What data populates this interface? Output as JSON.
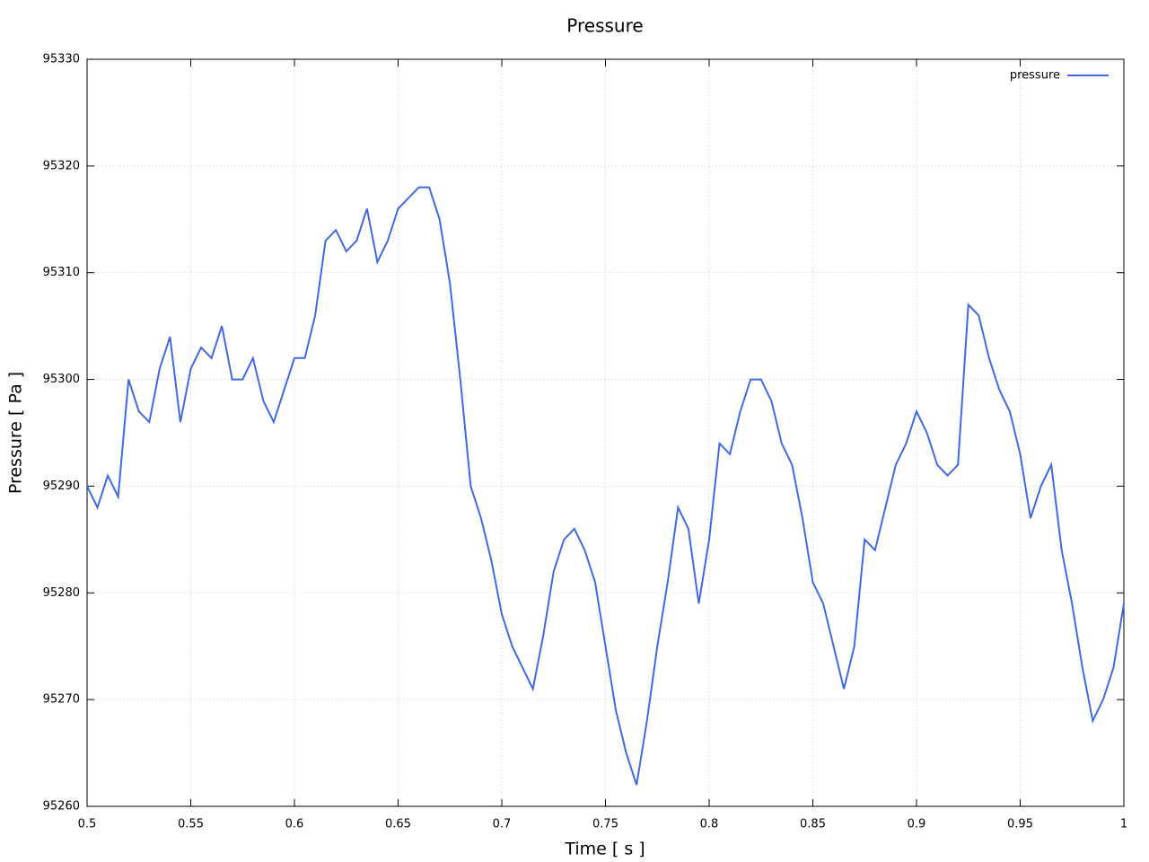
{
  "chart_data": {
    "type": "line",
    "title": "Pressure",
    "x_label": "Time [ s ]",
    "y_label": "Pressure [ Pa ]",
    "x": [
      0.5,
      0.505,
      0.51,
      0.515,
      0.52,
      0.525,
      0.53,
      0.535,
      0.54,
      0.545,
      0.55,
      0.555,
      0.56,
      0.565,
      0.57,
      0.575,
      0.58,
      0.585,
      0.59,
      0.595,
      0.6,
      0.605,
      0.61,
      0.615,
      0.62,
      0.625,
      0.63,
      0.635,
      0.64,
      0.645,
      0.65,
      0.655,
      0.66,
      0.665,
      0.67,
      0.675,
      0.68,
      0.685,
      0.69,
      0.695,
      0.7,
      0.705,
      0.71,
      0.715,
      0.72,
      0.725,
      0.73,
      0.735,
      0.74,
      0.745,
      0.75,
      0.755,
      0.76,
      0.765,
      0.77,
      0.775,
      0.78,
      0.785,
      0.79,
      0.795,
      0.8,
      0.805,
      0.81,
      0.815,
      0.82,
      0.825,
      0.83,
      0.835,
      0.84,
      0.845,
      0.85,
      0.855,
      0.86,
      0.865,
      0.87,
      0.875,
      0.88,
      0.885,
      0.89,
      0.895,
      0.9,
      0.905,
      0.91,
      0.915,
      0.92,
      0.925,
      0.93,
      0.935,
      0.94,
      0.945,
      0.95,
      0.955,
      0.96,
      0.965,
      0.97,
      0.975,
      0.98,
      0.985,
      0.99,
      0.995,
      1
    ],
    "series": [
      {
        "name": "pressure",
        "color": "#4169e1",
        "values": [
          95290,
          95288,
          95291,
          95289,
          95300,
          95297,
          95296,
          95301,
          95304,
          95296,
          95301,
          95303,
          95302,
          95305,
          95300,
          95300,
          95302,
          95298,
          95296,
          95299,
          95302,
          95302,
          95306,
          95313,
          95314,
          95312,
          95313,
          95316,
          95311,
          95313,
          95316,
          95317,
          95318,
          95318,
          95315,
          95309,
          95300,
          95290,
          95287,
          95283,
          95278,
          95275,
          95273,
          95271,
          95276,
          95282,
          95285,
          95286,
          95284,
          95281,
          95275,
          95269,
          95265,
          95262,
          95268,
          95275,
          95281,
          95288,
          95286,
          95279,
          95285,
          95294,
          95293,
          95297,
          95300,
          95300,
          95298,
          95294,
          95292,
          95287,
          95281,
          95279,
          95275,
          95271,
          95275,
          95285,
          95284,
          95288,
          95292,
          95294,
          95297,
          95295,
          95292,
          95291,
          95292,
          95307,
          95306,
          95302,
          95299,
          95297,
          95293,
          95287,
          95290,
          95292,
          95284,
          95279,
          95273,
          95268,
          95270,
          95273,
          95279
        ]
      }
    ],
    "xlim": [
      0.5,
      1
    ],
    "xticks": [
      0.5,
      0.55,
      0.6,
      0.65,
      0.7,
      0.75,
      0.8,
      0.85,
      0.9,
      0.95,
      1
    ],
    "ylim": [
      95260,
      95330
    ],
    "yticks": [
      95260,
      95270,
      95280,
      95290,
      95300,
      95310,
      95320,
      95330
    ],
    "grid": true,
    "legend": "top-right"
  }
}
